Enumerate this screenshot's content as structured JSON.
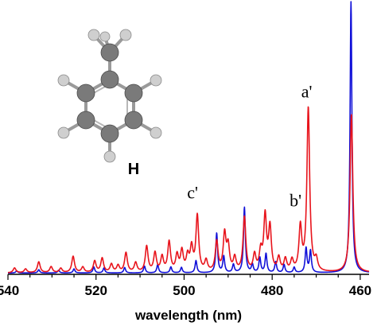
{
  "chart_data": {
    "type": "line",
    "title": "",
    "xlabel": "wavelength (nm)",
    "ylabel": "",
    "xlim": [
      540,
      458
    ],
    "x_reversed": true,
    "ylim": [
      0,
      1.0
    ],
    "xticks": [
      540,
      520,
      500,
      480,
      460
    ],
    "grid": false,
    "legend": "none",
    "molecule_label": "H",
    "annotations": [
      {
        "text": "a'",
        "x": 471.8,
        "y": 0.62
      },
      {
        "text": "b'",
        "x": 473.6,
        "y": 0.22
      },
      {
        "text": "c'",
        "x": 497.0,
        "y": 0.25
      }
    ],
    "series": [
      {
        "color": "#e8141c",
        "width": 0.75,
        "peaks": [
          [
            538.5,
            0.018
          ],
          [
            536.0,
            0.014
          ],
          [
            533.0,
            0.04
          ],
          [
            530.2,
            0.022
          ],
          [
            528.0,
            0.016
          ],
          [
            525.2,
            0.06
          ],
          [
            523.0,
            0.02
          ],
          [
            520.3,
            0.042
          ],
          [
            518.6,
            0.052
          ],
          [
            516.5,
            0.03
          ],
          [
            515.0,
            0.025
          ],
          [
            513.2,
            0.072
          ],
          [
            511.0,
            0.035
          ],
          [
            508.5,
            0.095
          ],
          [
            506.6,
            0.07
          ],
          [
            505.0,
            0.055
          ],
          [
            503.4,
            0.11
          ],
          [
            501.6,
            0.06
          ],
          [
            500.5,
            0.075
          ],
          [
            499.2,
            0.055
          ],
          [
            498.3,
            0.085
          ],
          [
            497.0,
            0.205
          ],
          [
            495.0,
            0.04
          ],
          [
            492.6,
            0.11
          ],
          [
            490.8,
            0.135
          ],
          [
            490.0,
            0.09
          ],
          [
            488.5,
            0.05
          ],
          [
            486.3,
            0.2
          ],
          [
            484.0,
            0.06
          ],
          [
            482.6,
            0.07
          ],
          [
            481.6,
            0.2
          ],
          [
            480.5,
            0.16
          ],
          [
            478.5,
            0.05
          ],
          [
            477.0,
            0.045
          ],
          [
            475.5,
            0.04
          ],
          [
            473.6,
            0.16
          ],
          [
            471.8,
            0.6
          ],
          [
            470.0,
            0.04
          ],
          [
            462.0,
            0.58
          ]
        ]
      },
      {
        "color": "#1010d8",
        "width": 0.5,
        "peaks": [
          [
            538.0,
            0.008
          ],
          [
            533.0,
            0.012
          ],
          [
            528.5,
            0.01
          ],
          [
            525.0,
            0.015
          ],
          [
            520.5,
            0.022
          ],
          [
            518.2,
            0.018
          ],
          [
            513.5,
            0.02
          ],
          [
            509.0,
            0.025
          ],
          [
            506.0,
            0.03
          ],
          [
            503.0,
            0.022
          ],
          [
            500.6,
            0.02
          ],
          [
            497.3,
            0.045
          ],
          [
            492.6,
            0.145
          ],
          [
            491.0,
            0.06
          ],
          [
            488.8,
            0.03
          ],
          [
            486.3,
            0.24
          ],
          [
            484.5,
            0.03
          ],
          [
            482.8,
            0.055
          ],
          [
            481.4,
            0.07
          ],
          [
            479.2,
            0.04
          ],
          [
            477.3,
            0.03
          ],
          [
            475.0,
            0.02
          ],
          [
            472.3,
            0.09
          ],
          [
            471.3,
            0.08
          ],
          [
            462.1,
            1.0
          ]
        ]
      }
    ]
  }
}
